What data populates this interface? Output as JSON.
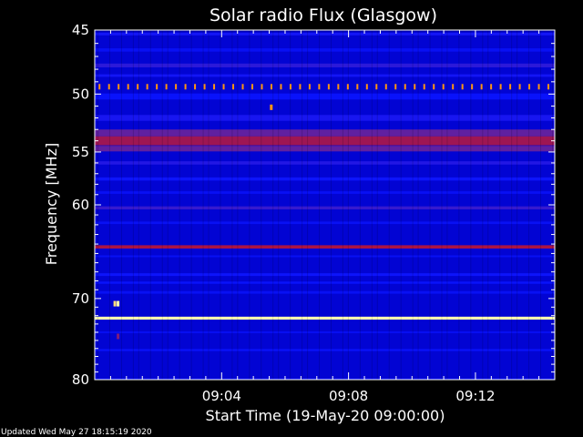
{
  "chart_data": {
    "type": "heatmap",
    "title": "Solar radio Flux (Glasgow)",
    "xlabel": "Start Time (19-May-20 09:00:00)",
    "ylabel": "Frequency [MHz]",
    "footer": "Updated Wed May 27 18:15:19 2020",
    "x_range_minutes": [
      0,
      14.5
    ],
    "x_ticks": [
      {
        "minute": 4,
        "label": "09:04"
      },
      {
        "minute": 8,
        "label": "09:08"
      },
      {
        "minute": 12,
        "label": "09:12"
      }
    ],
    "ylim": [
      45,
      80
    ],
    "y_scale": "log",
    "y_ticks": [
      45,
      50,
      55,
      60,
      70,
      80
    ],
    "colormap": [
      "#000080",
      "#0000c8",
      "#0a14ff",
      "#6020a0",
      "#c81020",
      "#ff8800",
      "#ffffb0"
    ],
    "background_level": 0.2,
    "bands": [
      {
        "freq": 45.0,
        "width": 0.2,
        "level": 0.05
      },
      {
        "freq": 45.3,
        "width": 0.2,
        "level": 0.35
      },
      {
        "freq": 46.5,
        "width": 0.25,
        "level": 0.3
      },
      {
        "freq": 47.7,
        "width": 0.3,
        "level": 0.4
      },
      {
        "freq": 48.5,
        "width": 0.2,
        "level": 0.35
      },
      {
        "freq": 50.2,
        "width": 0.5,
        "level": 0.32
      },
      {
        "freq": 52.0,
        "width": 0.5,
        "level": 0.36
      },
      {
        "freq": 53.3,
        "width": 0.6,
        "level": 0.5
      },
      {
        "freq": 54.0,
        "width": 0.8,
        "level": 0.6
      },
      {
        "freq": 54.7,
        "width": 0.5,
        "level": 0.5
      },
      {
        "freq": 56.0,
        "width": 0.3,
        "level": 0.38
      },
      {
        "freq": 57.5,
        "width": 0.3,
        "level": 0.34
      },
      {
        "freq": 58.8,
        "width": 0.25,
        "level": 0.3
      },
      {
        "freq": 60.3,
        "width": 0.3,
        "level": 0.42
      },
      {
        "freq": 61.8,
        "width": 0.25,
        "level": 0.3
      },
      {
        "freq": 64.3,
        "width": 0.35,
        "level": 0.62
      },
      {
        "freq": 65.3,
        "width": 0.2,
        "level": 0.3
      },
      {
        "freq": 67.3,
        "width": 0.3,
        "level": 0.34
      },
      {
        "freq": 68.2,
        "width": 0.25,
        "level": 0.32
      },
      {
        "freq": 69.3,
        "width": 0.3,
        "level": 0.3
      },
      {
        "freq": 72.3,
        "width": 0.35,
        "level": 1.0
      },
      {
        "freq": 74.0,
        "width": 0.2,
        "level": 0.3
      },
      {
        "freq": 76.2,
        "width": 0.25,
        "level": 0.32
      },
      {
        "freq": 80.0,
        "width": 0.3,
        "level": 0.3
      }
    ],
    "markers": [
      {
        "type": "periodic",
        "freq": 49.4,
        "minute_start": 0.15,
        "minute_end": 14.3,
        "count": 48,
        "level": 0.85
      },
      {
        "type": "point",
        "freq": 51.1,
        "minute": 5.55,
        "level": 0.85
      },
      {
        "type": "point",
        "freq": 70.6,
        "minute": 0.72,
        "level": 1.0
      },
      {
        "type": "point",
        "freq": 70.6,
        "minute": 0.62,
        "level": 0.95
      },
      {
        "type": "point",
        "freq": 74.5,
        "minute": 0.72,
        "level": 0.55
      }
    ]
  }
}
